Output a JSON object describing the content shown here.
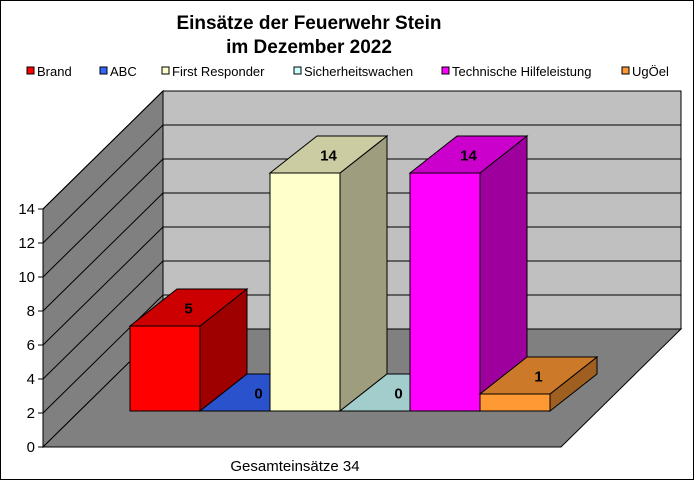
{
  "chart_data": {
    "type": "bar",
    "title": [
      "Einsätze der Feuerwehr Stein",
      "im Dezember 2022"
    ],
    "categories": [
      "Gesamteinsätze 34"
    ],
    "series": [
      {
        "name": "Brand",
        "values": [
          5
        ],
        "color": "#ff0000"
      },
      {
        "name": "ABC",
        "values": [
          0
        ],
        "color": "#3366ff"
      },
      {
        "name": "First Responder",
        "values": [
          14
        ],
        "color": "#ffffcc"
      },
      {
        "name": "Sicherheitswachen",
        "values": [
          0
        ],
        "color": "#ccffff"
      },
      {
        "name": "Technische Hilfeleistung",
        "values": [
          14
        ],
        "color": "#ff00ff"
      },
      {
        "name": "UgÖel",
        "values": [
          1
        ],
        "color": "#ff9933"
      }
    ],
    "yticks": [
      "0",
      "2",
      "4",
      "6",
      "8",
      "10",
      "12",
      "14"
    ],
    "ylim": [
      0,
      14
    ],
    "legend_position": "top",
    "grid": true,
    "style": "3d",
    "wall_color": "#c0c0c0",
    "floor_color": "#808080",
    "side_wall_color": "#808080"
  }
}
